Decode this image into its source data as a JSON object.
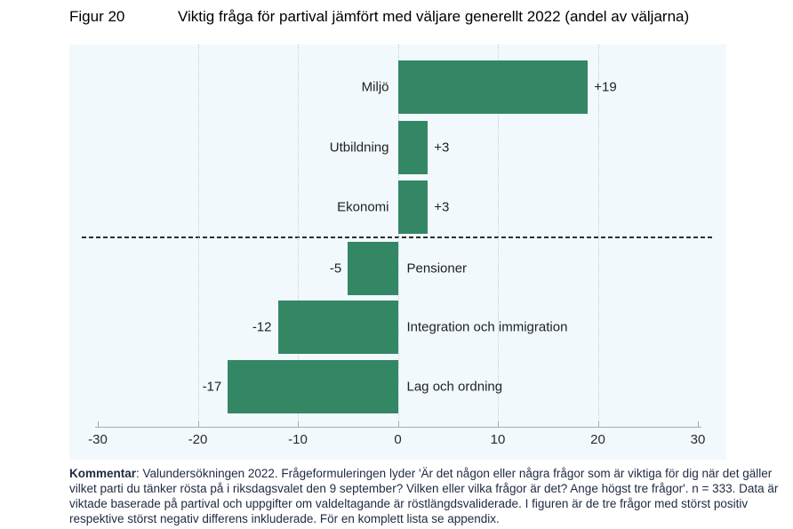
{
  "figure": {
    "label": "Figur 20",
    "title": "Viktig fråga för partival jämfört med väljare generellt 2022 (andel av väljarna)"
  },
  "chart_data": {
    "type": "bar",
    "orientation": "horizontal",
    "title": "Viktig fråga för partival jämfört med väljare generellt 2022 (andel av väljarna)",
    "categories": [
      "Miljö",
      "Utbildning",
      "Ekonomi",
      "Pensioner",
      "Integration och immigration",
      "Lag och ordning"
    ],
    "values": [
      19,
      3,
      3,
      -5,
      -12,
      -17
    ],
    "value_labels": [
      "+19",
      "+3",
      "+3",
      "-5",
      "-12",
      "-17"
    ],
    "xlabel": "",
    "ylabel": "",
    "xlim": [
      -30,
      30
    ],
    "xticks": [
      -30,
      -20,
      -10,
      0,
      10,
      20,
      30
    ],
    "gridlines_at": [
      -20,
      -10,
      0,
      10,
      20
    ],
    "grid": "dotted-vertical",
    "legend": null,
    "separator_after_index": 2,
    "bar_color": "#348765",
    "plot_bg": "#f1f9fc"
  },
  "comment": {
    "label": "Kommentar",
    "text": ": Valundersökningen 2022. Frågeformuleringen lyder 'Är det någon eller några frågor som är viktiga för dig när det gäller vilket parti du tänker rösta på i riksdagsvalet den 9 september? Vilken eller vilka frågor är det? Ange högst tre frågor'. n = 333. Data är viktade baserade på partival och uppgifter om valdeltagande är röstlängdsvaliderade. I figuren är de tre frågor med störst positiv respektive störst negativ differens inkluderade. För en komplett lista se appendix."
  }
}
